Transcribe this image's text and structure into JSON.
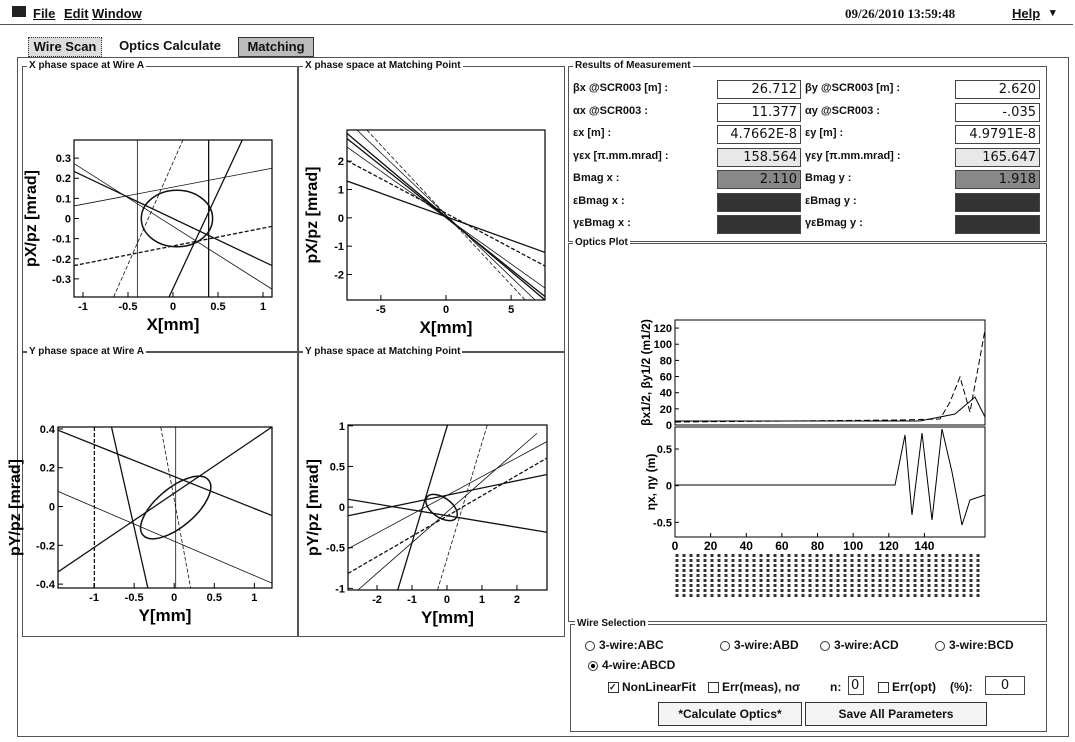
{
  "menu": {
    "items": [
      "File",
      "Edit",
      "Window"
    ],
    "datetime": "09/26/2010 13:59:48",
    "help": "Help"
  },
  "tabs": [
    "Wire Scan",
    "Optics Calculate",
    "Matching"
  ],
  "plots": [
    {
      "title": "X phase space at Wire A",
      "xlabel": "X[mm]",
      "ylabel": "pX/pz [mrad]",
      "xlim": [
        -1.1,
        1.1
      ],
      "ylim": [
        -0.39,
        0.39
      ],
      "xticks": [
        -1,
        -0.5,
        0,
        0.5,
        1
      ],
      "yticks": [
        -0.3,
        -0.2,
        -0.1,
        0,
        0.1,
        0.2,
        0.3
      ]
    },
    {
      "title": "X phase space at Matching Point",
      "xlabel": "X[mm]",
      "ylabel": "pX/pz [mrad]",
      "xlim": [
        -7.6,
        7.6
      ],
      "ylim": [
        -2.9,
        3.1
      ],
      "xticks": [
        -5,
        0,
        5
      ],
      "yticks": [
        -2,
        -1,
        0,
        1,
        2
      ]
    },
    {
      "title": "Y phase space at Wire A",
      "xlabel": "Y[mm]",
      "ylabel": "pY/pz [mrad]",
      "xlim": [
        -1.45,
        1.22
      ],
      "ylim": [
        -0.42,
        0.41
      ],
      "xticks": [
        -1,
        -0.5,
        0,
        0.5,
        1
      ],
      "yticks": [
        -0.4,
        -0.2,
        0,
        0.2,
        0.4
      ]
    },
    {
      "title": "Y phase space at Matching Point",
      "xlabel": "Y[mm]",
      "ylabel": "pY/pz [mrad]",
      "xlim": [
        -2.83,
        2.86
      ],
      "ylim": [
        -1.02,
        1.01
      ],
      "xticks": [
        -2,
        -1,
        0,
        1,
        2
      ],
      "yticks": [
        -1,
        -0.5,
        0,
        0.5,
        1
      ]
    }
  ],
  "results": {
    "title": "Results of Measurement",
    "rows": [
      {
        "l": "βx @SCR003 [m] :",
        "lv": "26.712",
        "r": "βy @SCR003 [m] :",
        "rv": "2.620"
      },
      {
        "l": "αx @SCR003 :",
        "lv": "11.377",
        "r": "αy @SCR003 :",
        "rv": "-.035"
      },
      {
        "l": "εx [m] :",
        "lv": "4.7662E-8",
        "r": "εy [m] :",
        "rv": "4.9791E-8"
      },
      {
        "l": "γεx [π.mm.mrad] :",
        "lv": "158.564",
        "r": "γεy [π.mm.mrad] :",
        "rv": "165.647"
      },
      {
        "l": "Bmag x :",
        "lv": "2.110",
        "r": "Bmag y :",
        "rv": "1.918"
      },
      {
        "l": "εBmag x :",
        "r": "εBmag y :"
      },
      {
        "l": "γεBmag x :",
        "r": "γεBmag y :"
      }
    ]
  },
  "optics": {
    "title": "Optics Plot",
    "ylabel_top": "βx1/2, βy1/2 (m1/2)",
    "ylabel_bottom": "ηx, ηy (m)",
    "xlim": [
      0,
      174
    ],
    "xticks": [
      0,
      20,
      40,
      60,
      80,
      100,
      120,
      140
    ],
    "ylim_top": [
      0,
      130
    ],
    "yticks_top": [
      0,
      20,
      40,
      60,
      80,
      100,
      120
    ],
    "ylim_bottom": [
      -0.7,
      0.8
    ],
    "yticks_bottom": [
      -0.5,
      0,
      0.5
    ]
  },
  "wire_selection": {
    "title": "Wire Selection",
    "options": [
      "3-wire:ABC",
      "3-wire:ABD",
      "3-wire:ACD",
      "3-wire:BCD",
      "4-wire:ABCD"
    ],
    "nonlinear": "NonLinearFit",
    "err_meas": "Err(meas), nσ",
    "n_label": "n:",
    "n_value": "0",
    "err_opt": "Err(opt)",
    "pct": "(%):",
    "opt_value": "0",
    "buttons": [
      "*Calculate Optics*",
      "Save All Parameters"
    ]
  }
}
